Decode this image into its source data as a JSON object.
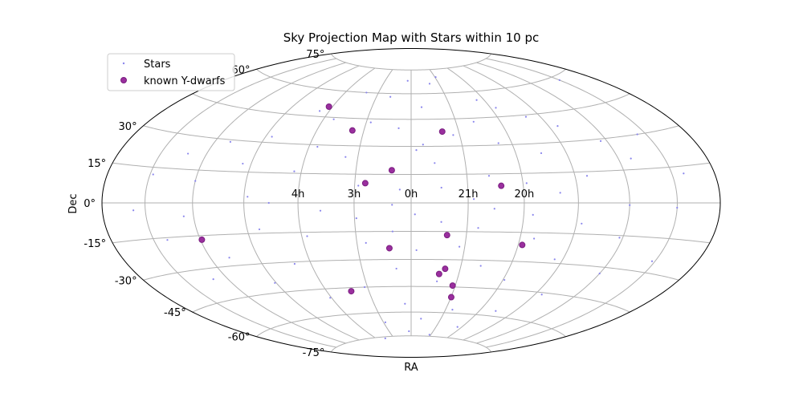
{
  "chart_data": {
    "type": "scatter",
    "projection": "hammer-aitoff",
    "title": "Sky Projection Map with Stars within 10 pc",
    "xlabel": "RA",
    "ylabel": "Dec",
    "grid": true,
    "legend_position": "top-left",
    "ra_tick_labels": [
      {
        "lon": 60,
        "label": "4h"
      },
      {
        "lon": 30,
        "label": "3h"
      },
      {
        "lon": 0,
        "label": "0h"
      },
      {
        "lon": -30,
        "label": "21h"
      },
      {
        "lon": -60,
        "label": "20h"
      }
    ],
    "dec_tick_labels": [
      {
        "lat": 75,
        "label": "75°"
      },
      {
        "lat": 60,
        "label": "60°"
      },
      {
        "lat": 30,
        "label": "30°"
      },
      {
        "lat": 15,
        "label": "15°"
      },
      {
        "lat": 0,
        "label": "0°"
      },
      {
        "lat": -15,
        "label": "-15°"
      },
      {
        "lat": -30,
        "label": "-30°"
      },
      {
        "lat": -45,
        "label": "-45°"
      },
      {
        "lat": -60,
        "label": "-60°"
      },
      {
        "lat": -75,
        "label": "-75°"
      }
    ],
    "series": [
      {
        "name": "Stars",
        "color": "#8a86ec",
        "points": [
          [
            -31,
            70
          ],
          [
            4,
            68
          ],
          [
            -20,
            66
          ],
          [
            41,
            60
          ],
          [
            -54,
            55
          ],
          [
            18,
            58
          ],
          [
            -8,
            52
          ],
          [
            -64,
            50
          ],
          [
            67,
            48
          ],
          [
            -80,
            44
          ],
          [
            53,
            44
          ],
          [
            27,
            43
          ],
          [
            -42,
            43
          ],
          [
            8,
            40
          ],
          [
            -96,
            38
          ],
          [
            -26,
            36
          ],
          [
            86,
            33
          ],
          [
            -7,
            31
          ],
          [
            -52,
            31
          ],
          [
            -144,
            30
          ],
          [
            110,
            29
          ],
          [
            -116,
            29
          ],
          [
            55,
            29
          ],
          [
            -3,
            28
          ],
          [
            37,
            24
          ],
          [
            -75,
            25
          ],
          [
            132,
            22
          ],
          [
            -128,
            20
          ],
          [
            95,
            19
          ],
          [
            -13,
            21
          ],
          [
            64,
            16
          ],
          [
            -42,
            14
          ],
          [
            -97,
            13
          ],
          [
            148,
            12
          ],
          [
            -158,
            12
          ],
          [
            120,
            10
          ],
          [
            -62,
            10
          ],
          [
            28,
            9
          ],
          [
            6,
            7
          ],
          [
            -16,
            8
          ],
          [
            -80,
            5
          ],
          [
            88,
            3
          ],
          [
            -33,
            2
          ],
          [
            -120,
            -1
          ],
          [
            76,
            0
          ],
          [
            10,
            -1
          ],
          [
            -150,
            -2
          ],
          [
            158,
            -3
          ],
          [
            48,
            -4
          ],
          [
            -44,
            -3
          ],
          [
            -2,
            -6
          ],
          [
            -65,
            -6
          ],
          [
            126,
            -6
          ],
          [
            29,
            -8
          ],
          [
            -16,
            -10
          ],
          [
            -93,
            -10
          ],
          [
            83,
            -13
          ],
          [
            -36,
            -13
          ],
          [
            10,
            -15
          ],
          [
            -118,
            -16
          ],
          [
            141,
            -16
          ],
          [
            -68,
            -18
          ],
          [
            57,
            -17
          ],
          [
            25,
            -21
          ],
          [
            -27,
            -23
          ],
          [
            -148,
            -25
          ],
          [
            -3,
            -25
          ],
          [
            108,
            -26
          ],
          [
            -85,
            -28
          ],
          [
            70,
            -31
          ],
          [
            -42,
            -33
          ],
          [
            9,
            -35
          ],
          [
            -120,
            -33
          ],
          [
            130,
            -35
          ],
          [
            -61,
            -40
          ],
          [
            91,
            -40
          ],
          [
            -17,
            -42
          ],
          [
            32,
            -45
          ],
          [
            -95,
            -46
          ],
          [
            61,
            -50
          ],
          [
            5,
            -55
          ],
          [
            -36,
            -58
          ],
          [
            -74,
            -57
          ],
          [
            -10,
            -64
          ],
          [
            28,
            -66
          ],
          [
            -55,
            -68
          ],
          [
            3,
            -72
          ],
          [
            -28,
            -74
          ],
          [
            45,
            -76
          ],
          [
            -150,
            58
          ]
        ]
      },
      {
        "name": "known Y-dwarfs",
        "color": "#9a2f9e",
        "points": [
          [
            -19.6,
            38.0
          ],
          [
            -48.0,
            8.8
          ],
          [
            37.3,
            38.3
          ],
          [
            10.5,
            17.2
          ],
          [
            24.4,
            10.3
          ],
          [
            119.1,
            -16.9
          ],
          [
            -19.5,
            -16.9
          ],
          [
            12.2,
            -23.9
          ],
          [
            -62.3,
            -21.4
          ],
          [
            -20.8,
            -35.0
          ],
          [
            -17.6,
            -37.9
          ],
          [
            -28.2,
            -44.2
          ],
          [
            42.6,
            -47.0
          ],
          [
            -30.2,
            -50.8
          ],
          [
            62.8,
            50.7
          ]
        ]
      }
    ]
  }
}
